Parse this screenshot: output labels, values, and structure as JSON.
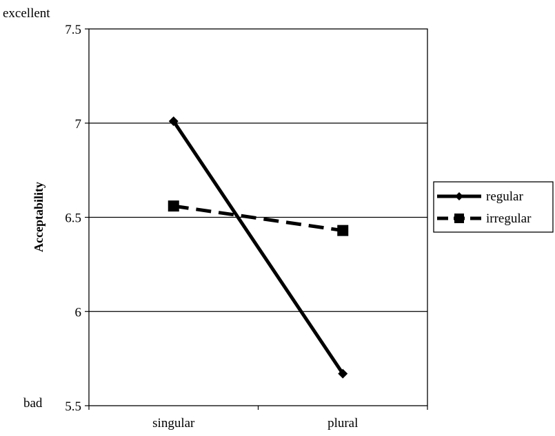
{
  "chart_data": {
    "type": "line",
    "title": "",
    "xlabel": "",
    "ylabel": "Acceptability",
    "categories": [
      "singular",
      "plural"
    ],
    "ylim": [
      5.5,
      7.5
    ],
    "yticks": [
      "5.5",
      "6",
      "6.5",
      "7",
      "7.5"
    ],
    "ytick_values": [
      5.5,
      6,
      6.5,
      7,
      7.5
    ],
    "annotations": {
      "top": "excellent",
      "bottom": "bad"
    },
    "grid": true,
    "legend_position": "right",
    "series": [
      {
        "name": "regular",
        "values": [
          7.01,
          5.67
        ],
        "marker": "diamond",
        "style": "solid",
        "color": "#000000"
      },
      {
        "name": "irregular",
        "values": [
          6.56,
          6.43
        ],
        "marker": "square",
        "style": "dashed",
        "color": "#000000"
      }
    ]
  }
}
